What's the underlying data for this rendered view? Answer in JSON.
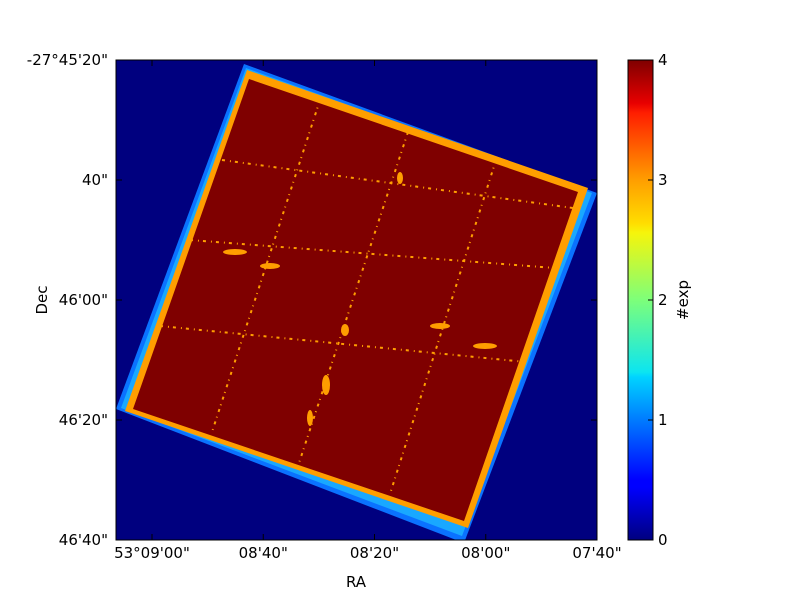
{
  "chart_data": {
    "type": "heatmap",
    "title": "",
    "xlabel": "RA",
    "ylabel": "Dec",
    "x_ticks": [
      "53°09'00\"",
      "08'40\"",
      "08'20\"",
      "08'00\"",
      "07'40\""
    ],
    "y_ticks": [
      "-27°45'20\"",
      "40\"",
      "46'00\"",
      "46'20\"",
      "46'40\""
    ],
    "colorbar": {
      "label": "#exp",
      "range": [
        0,
        4
      ],
      "ticks": [
        "0",
        "1",
        "2",
        "3",
        "4"
      ],
      "colormap": "jet"
    },
    "field": {
      "corner_ra": [
        "53°09'02\"",
        "53°08'46\"",
        "53°07'40\"",
        "53°07'56\""
      ],
      "corner_dec": [
        "-27°46'19\"",
        "-27°45'25\"",
        "-27°45'42\"",
        "-27°46'36\""
      ],
      "outside_value": 0,
      "edge_band_value": 1,
      "overlap_edge_value": 3,
      "interior_value": 4,
      "chip_gap_value": 3
    }
  }
}
